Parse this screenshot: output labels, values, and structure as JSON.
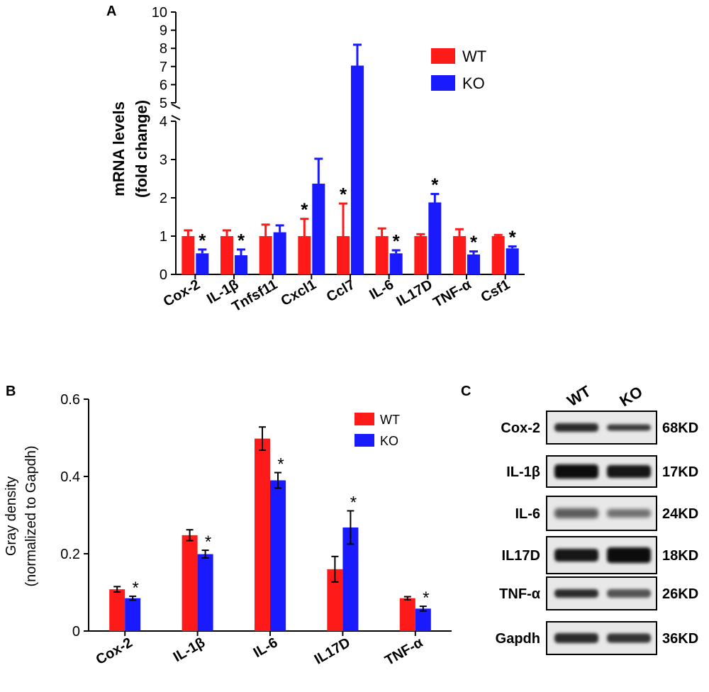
{
  "panels": {
    "a": "A",
    "b": "B",
    "c": "C"
  },
  "colors": {
    "wt": "#ff1a1a",
    "ko": "#1a1aff"
  },
  "chart_data": [
    {
      "panel": "A",
      "type": "bar",
      "ylabel_line1": "mRNA levels",
      "ylabel_line2": "(fold change)",
      "categories": [
        "Cox-2",
        "IL-1β",
        "Tnfsf11",
        "Cxcl1",
        "Ccl7",
        "IL-6",
        "IL17D",
        "TNF-α",
        "Csf1"
      ],
      "series": [
        {
          "name": "WT",
          "values": [
            1.0,
            1.0,
            1.0,
            1.0,
            1.0,
            1.0,
            1.0,
            1.0,
            1.0
          ],
          "errors": [
            0.15,
            0.15,
            0.3,
            0.45,
            0.85,
            0.2,
            0.05,
            0.18,
            0.03
          ]
        },
        {
          "name": "KO",
          "values": [
            0.55,
            0.5,
            1.1,
            2.37,
            7.05,
            0.55,
            1.88,
            0.52,
            0.68
          ],
          "errors": [
            0.1,
            0.15,
            0.18,
            0.65,
            1.15,
            0.08,
            0.22,
            0.08,
            0.05
          ]
        }
      ],
      "significant": [
        false,
        true,
        false,
        true,
        false,
        false,
        true,
        false,
        true,
        false,
        false,
        true,
        false,
        true,
        false,
        true,
        false,
        true
      ],
      "sig_marker": "*",
      "ylim_lower": [
        0,
        4
      ],
      "ylim_upper": [
        5,
        10
      ],
      "yticks_lower": [
        "0",
        "1",
        "2",
        "3",
        "4"
      ],
      "yticks_upper": [
        "5",
        "6",
        "7",
        "8",
        "9",
        "10"
      ],
      "legend": [
        "WT",
        "KO"
      ],
      "legend_position": "top-right"
    },
    {
      "panel": "B",
      "type": "bar",
      "ylabel_line1": "Gray density",
      "ylabel_line2": "(normalized to Gapdh)",
      "categories": [
        "Cox-2",
        "IL-1β",
        "IL-6",
        "IL17D",
        "TNF-α"
      ],
      "series": [
        {
          "name": "WT",
          "values": [
            0.108,
            0.248,
            0.498,
            0.16,
            0.085
          ],
          "errors": [
            0.007,
            0.014,
            0.03,
            0.033,
            0.004
          ]
        },
        {
          "name": "KO",
          "values": [
            0.085,
            0.199,
            0.39,
            0.268,
            0.058
          ],
          "errors": [
            0.005,
            0.01,
            0.02,
            0.043,
            0.006
          ]
        }
      ],
      "significant": [
        false,
        true,
        false,
        true,
        false,
        true,
        false,
        true,
        false,
        true
      ],
      "sig_marker": "*",
      "ylim": [
        0,
        0.6
      ],
      "yticks": [
        "0",
        "0.2",
        "0.4",
        "0.6"
      ],
      "legend": [
        "WT",
        "KO"
      ],
      "legend_position": "top-right"
    }
  ],
  "western_blot": {
    "columns": [
      "WT",
      "KO"
    ],
    "rows": [
      {
        "protein": "Cox-2",
        "size": "68KD"
      },
      {
        "protein": "IL-1β",
        "size": "17KD"
      },
      {
        "protein": "IL-6",
        "size": "24KD"
      },
      {
        "protein": "IL17D",
        "size": "18KD"
      },
      {
        "protein": "TNF-α",
        "size": "26KD"
      },
      {
        "protein": "Gapdh",
        "size": "36KD"
      }
    ]
  }
}
